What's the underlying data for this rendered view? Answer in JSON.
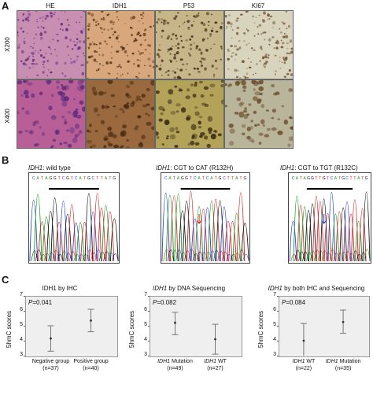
{
  "panel_a": {
    "letter": "A",
    "columns": [
      "HE",
      "IDH1",
      "P53",
      "KI67"
    ],
    "rows": [
      "X200",
      "X400"
    ],
    "tile_colors": {
      "HE": [
        "#c98fb3",
        "#b85f97"
      ],
      "IDH1": [
        "#d8a77b",
        "#9a6a3e"
      ],
      "P53": [
        "#c6b68a",
        "#b2a359"
      ],
      "KI67": [
        "#d9d4bd",
        "#b9b59a"
      ]
    }
  },
  "panel_b": {
    "letter": "B",
    "traces": [
      {
        "gene": "IDH1",
        "desc": ": wild type",
        "seq": "CATAGGTCGTCATGCTTATG"
      },
      {
        "gene": "IDH1",
        "desc": ": CGT to CAT (R132H)",
        "seq": "CATAGGTCATCATGCTTATG"
      },
      {
        "gene": "IDH1",
        "desc": ": CGT to TGT (R132C)",
        "seq": "CATAGGTTGTCATGCTTATG"
      }
    ],
    "base_colors": {
      "A": "#1a9a1a",
      "C": "#1f3fcf",
      "G": "#111111",
      "T": "#d42020"
    }
  },
  "panel_c": {
    "letter": "C",
    "chart_data": [
      {
        "type": "scatter",
        "title": "IDH1 by IHC",
        "ylabel": "5hmC scores",
        "ylim": [
          3,
          7
        ],
        "yticks": [
          3,
          4,
          5,
          6,
          7
        ],
        "annotation": "P=0.041",
        "categories": [
          "Negative group\n(n=37)",
          "Positive group\n(n=40)"
        ],
        "points": [
          {
            "mean": 4.15,
            "low": 3.3,
            "high": 5.0
          },
          {
            "mean": 5.35,
            "low": 4.6,
            "high": 6.1
          }
        ]
      },
      {
        "type": "scatter",
        "title": "IDH1 by DNA Sequencing",
        "ylabel": "5hmC scores",
        "ylim": [
          3,
          7
        ],
        "yticks": [
          3,
          4,
          5,
          6,
          7
        ],
        "annotation": "P=0.082",
        "categories": [
          "IDH1 Mutation\n(n=49)",
          "IDH1 WT\n(n=27)"
        ],
        "points": [
          {
            "mean": 5.2,
            "low": 4.4,
            "high": 5.9
          },
          {
            "mean": 4.1,
            "low": 3.1,
            "high": 5.1
          }
        ]
      },
      {
        "type": "scatter",
        "title": "IDH1 by both IHC and Sequencing",
        "ylabel": "5hmC scores",
        "ylim": [
          3,
          7
        ],
        "yticks": [
          3,
          4,
          5,
          6,
          7
        ],
        "annotation": "P=0.084",
        "categories": [
          "IDH1 WT\n(n=22)",
          "IDH1 Mutation\n(n=35)"
        ],
        "points": [
          {
            "mean": 4.0,
            "low": 2.9,
            "high": 5.15
          },
          {
            "mean": 5.25,
            "low": 4.5,
            "high": 6.05
          }
        ]
      }
    ]
  }
}
